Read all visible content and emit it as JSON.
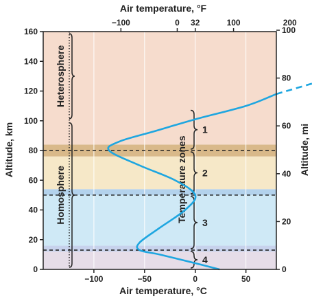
{
  "chart_data": {
    "type": "line",
    "xlabel_bottom": "Air temperature, °C",
    "xlabel_top": "Air temperature, °F",
    "ylabel_left": "Altitude, km",
    "ylabel_right": "Altitude, mi",
    "xlim_c": [
      -150,
      80
    ],
    "ylim_km": [
      0,
      160
    ],
    "x_ticks_bottom": [
      {
        "value": -100,
        "label": "−100"
      },
      {
        "value": -50,
        "label": "−50"
      },
      {
        "value": 0,
        "label": "0"
      },
      {
        "value": 50,
        "label": "50"
      }
    ],
    "x_ticks_top_f": [
      {
        "value": -100,
        "label": "−100"
      },
      {
        "value": 0,
        "label": "0"
      },
      {
        "value": 32,
        "label": "32"
      },
      {
        "value": 100,
        "label": "100"
      },
      {
        "value": 200,
        "label": "200"
      }
    ],
    "y_ticks_left": [
      {
        "value": 0,
        "label": "0"
      },
      {
        "value": 20,
        "label": "20"
      },
      {
        "value": 40,
        "label": "40"
      },
      {
        "value": 60,
        "label": "60"
      },
      {
        "value": 80,
        "label": "80"
      },
      {
        "value": 100,
        "label": "100"
      },
      {
        "value": 120,
        "label": "120"
      },
      {
        "value": 140,
        "label": "140"
      },
      {
        "value": 160,
        "label": "160"
      }
    ],
    "y_ticks_right_mi": [
      {
        "value": 0,
        "label": "0"
      },
      {
        "value": 20,
        "label": "20"
      },
      {
        "value": 40,
        "label": "40"
      },
      {
        "value": 60,
        "label": "60"
      },
      {
        "value": 80,
        "label": "80"
      },
      {
        "value": 100,
        "label": "100"
      }
    ],
    "vertical_gridlines_c": [
      -100,
      -50,
      0,
      50
    ],
    "layers": [
      {
        "from_km": 0,
        "to_km": 12,
        "color": "#e6dde8"
      },
      {
        "from_km": 12,
        "to_km": 16,
        "color": "#c7d2ec"
      },
      {
        "from_km": 16,
        "to_km": 50,
        "color": "#cfe9f6"
      },
      {
        "from_km": 50,
        "to_km": 54,
        "color": "#b3d2ec"
      },
      {
        "from_km": 54,
        "to_km": 76,
        "color": "#f6e8c8"
      },
      {
        "from_km": 76,
        "to_km": 84,
        "color": "#d9b98a"
      },
      {
        "from_km": 84,
        "to_km": 160,
        "color": "#f6dccd"
      }
    ],
    "boundaries_km": [
      13,
      50,
      80
    ],
    "temperature_profile": [
      {
        "t_c": 24,
        "alt_km": 0
      },
      {
        "t_c": -5,
        "alt_km": 5
      },
      {
        "t_c": -35,
        "alt_km": 10
      },
      {
        "t_c": -55,
        "alt_km": 13
      },
      {
        "t_c": -55,
        "alt_km": 18
      },
      {
        "t_c": -35,
        "alt_km": 28
      },
      {
        "t_c": -10,
        "alt_km": 40
      },
      {
        "t_c": 0,
        "alt_km": 50
      },
      {
        "t_c": -20,
        "alt_km": 60
      },
      {
        "t_c": -55,
        "alt_km": 70
      },
      {
        "t_c": -85,
        "alt_km": 80
      },
      {
        "t_c": -75,
        "alt_km": 86
      },
      {
        "t_c": -40,
        "alt_km": 93
      },
      {
        "t_c": 0,
        "alt_km": 101
      },
      {
        "t_c": 50,
        "alt_km": 110
      },
      {
        "t_c": 80,
        "alt_km": 118
      }
    ],
    "temperature_profile_extrapolated": [
      {
        "t_c": 80,
        "alt_km": 118
      },
      {
        "t_c": 125,
        "alt_km": 127
      },
      {
        "t_c": 155,
        "alt_km": 133
      }
    ],
    "composition_regions": [
      {
        "label": "Heterosphere",
        "from_km": 100,
        "to_km": 160
      },
      {
        "label": "Homosphere",
        "from_km": 0,
        "to_km": 100
      }
    ],
    "temperature_zones_label": "Temperature zones",
    "temperature_zones": [
      {
        "label": "1",
        "from_km": 80,
        "to_km": 108
      },
      {
        "label": "2",
        "from_km": 50,
        "to_km": 80
      },
      {
        "label": "3",
        "from_km": 13,
        "to_km": 50
      },
      {
        "label": "4",
        "from_km": 0,
        "to_km": 13
      }
    ],
    "colors": {
      "curve": "#1ea6e0",
      "axis": "#222222",
      "grid": "#ffffff",
      "dashed_boundary": "#222222"
    }
  }
}
